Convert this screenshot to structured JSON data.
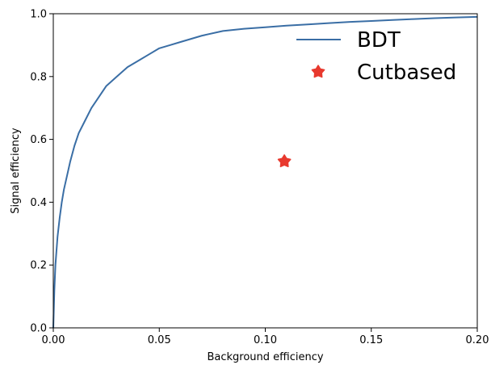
{
  "chart_data": {
    "type": "line",
    "xlabel": "Background efficiency",
    "ylabel": "Signal efficiency",
    "xlim": [
      0.0,
      0.2
    ],
    "ylim": [
      0.0,
      1.0
    ],
    "grid": false,
    "legend_position": "top-right",
    "x_ticks": [
      "0.00",
      "0.05",
      "0.10",
      "0.15",
      "0.20"
    ],
    "y_ticks": [
      "0.0",
      "0.2",
      "0.4",
      "0.6",
      "0.8",
      "1.0"
    ],
    "series": [
      {
        "name": "BDT",
        "kind": "line",
        "color": "#3a6ea5",
        "x": [
          0.0,
          0.0005,
          0.001,
          0.002,
          0.003,
          0.004,
          0.005,
          0.006,
          0.008,
          0.01,
          0.012,
          0.015,
          0.018,
          0.02,
          0.025,
          0.03,
          0.035,
          0.04,
          0.045,
          0.05,
          0.055,
          0.06,
          0.07,
          0.08,
          0.09,
          0.1,
          0.11,
          0.12,
          0.13,
          0.14,
          0.15,
          0.16,
          0.17,
          0.18,
          0.19,
          0.2
        ],
        "y": [
          0.0,
          0.12,
          0.2,
          0.29,
          0.35,
          0.4,
          0.44,
          0.47,
          0.53,
          0.58,
          0.62,
          0.66,
          0.7,
          0.72,
          0.77,
          0.8,
          0.83,
          0.85,
          0.87,
          0.89,
          0.9,
          0.91,
          0.93,
          0.945,
          0.952,
          0.957,
          0.962,
          0.966,
          0.97,
          0.974,
          0.977,
          0.98,
          0.983,
          0.986,
          0.988,
          0.99
        ]
      },
      {
        "name": "Cutbased",
        "kind": "marker",
        "color": "#e8392e",
        "x": [
          0.109
        ],
        "y": [
          0.53
        ]
      }
    ]
  }
}
